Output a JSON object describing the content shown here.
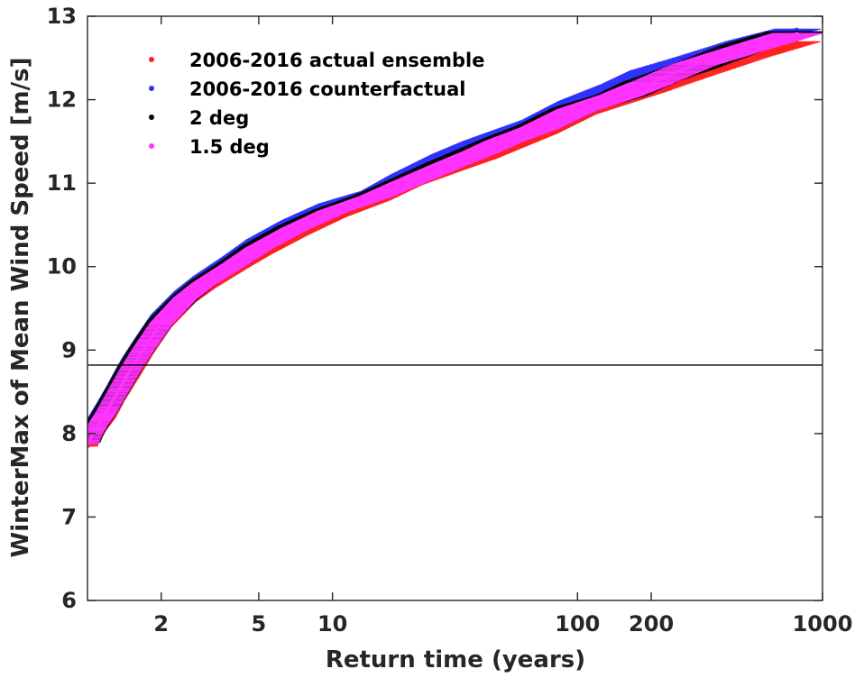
{
  "chart_data": {
    "type": "scatter",
    "xlabel": "Return time (years)",
    "ylabel": "WinterMax of Mean Wind Speed [m/s]",
    "x_scale": "log",
    "xlim": [
      1,
      1000
    ],
    "ylim": [
      6,
      13
    ],
    "x_ticks": [
      2,
      5,
      10,
      100,
      200,
      1000
    ],
    "y_ticks": [
      6,
      7,
      8,
      9,
      10,
      11,
      12,
      13
    ],
    "grid": false,
    "legend_position": "top-left",
    "reference_line": {
      "y": 8.82,
      "color": "#000000"
    },
    "series": [
      {
        "name": "2006-2016 actual ensemble",
        "color": "#ff2020",
        "x": [
          1.01,
          1.05,
          1.1,
          1.2,
          1.3,
          1.5,
          1.7,
          2,
          2.5,
          3,
          4,
          5,
          7,
          10,
          15,
          20,
          30,
          40,
          50,
          70,
          100,
          150,
          200,
          300,
          500,
          800
        ],
        "y": [
          7.85,
          7.95,
          8.05,
          8.2,
          8.4,
          8.7,
          8.97,
          9.28,
          9.58,
          9.75,
          9.98,
          10.15,
          10.38,
          10.6,
          10.8,
          10.98,
          11.17,
          11.3,
          11.42,
          11.6,
          11.83,
          12.0,
          12.12,
          12.3,
          12.52,
          12.7
        ],
        "xerr_rel": 0.09
      },
      {
        "name": "2006-2016 counterfactual",
        "color": "#3030ff",
        "x": [
          1.01,
          1.05,
          1.1,
          1.2,
          1.3,
          1.5,
          1.7,
          2,
          2.5,
          3,
          4,
          5,
          7,
          10,
          15,
          20,
          30,
          40,
          50,
          70,
          100,
          150,
          200,
          300,
          500,
          800
        ],
        "y": [
          7.98,
          8.1,
          8.2,
          8.38,
          8.55,
          8.88,
          9.12,
          9.42,
          9.7,
          9.88,
          10.12,
          10.32,
          10.55,
          10.75,
          10.9,
          11.1,
          11.35,
          11.5,
          11.6,
          11.75,
          11.98,
          12.18,
          12.35,
          12.5,
          12.7,
          12.85
        ],
        "xerr_rel": 0.09
      },
      {
        "name": "2 deg",
        "color": "#000000",
        "x": [
          1.01,
          1.05,
          1.1,
          1.2,
          1.3,
          1.5,
          1.7,
          2,
          2.5,
          3,
          4,
          5,
          7,
          10,
          15,
          20,
          30,
          40,
          50,
          70,
          100,
          150,
          200,
          300,
          500,
          800
        ],
        "y": [
          7.9,
          8.02,
          8.12,
          8.3,
          8.48,
          8.8,
          9.05,
          9.35,
          9.63,
          9.82,
          10.05,
          10.25,
          10.48,
          10.68,
          10.86,
          11.02,
          11.25,
          11.4,
          11.52,
          11.68,
          11.9,
          12.05,
          12.22,
          12.4,
          12.65,
          12.82
        ],
        "xerr_rel": 0.12
      },
      {
        "name": "1.5 deg",
        "color": "#ff33ff",
        "x": [
          1.01,
          1.05,
          1.1,
          1.2,
          1.3,
          1.5,
          1.7,
          2,
          2.5,
          3,
          4,
          5,
          7,
          10,
          15,
          20,
          30,
          40,
          50,
          70,
          100,
          150,
          200,
          300,
          500,
          800
        ],
        "y": [
          7.88,
          8.0,
          8.1,
          8.27,
          8.45,
          8.77,
          9.02,
          9.32,
          9.62,
          9.8,
          10.03,
          10.22,
          10.45,
          10.66,
          10.84,
          11.0,
          11.22,
          11.37,
          11.5,
          11.66,
          11.88,
          12.05,
          12.2,
          12.42,
          12.62,
          12.8
        ],
        "xerr_rel": 0.1
      }
    ]
  }
}
